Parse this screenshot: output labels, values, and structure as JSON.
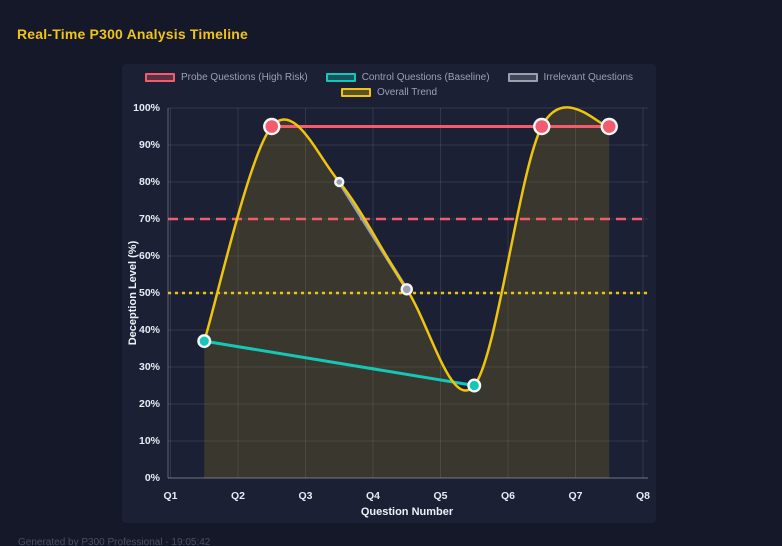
{
  "page": {
    "footer": "Generated by P300 Professional - 19:05:42"
  },
  "chart_data": {
    "type": "line",
    "title": "Real-Time P300 Analysis Timeline",
    "xlabel": "Question Number",
    "ylabel": "Deception Level (%)",
    "x_tick_labels": [
      "Q1",
      "Q2",
      "Q3",
      "Q4",
      "Q5",
      "Q6",
      "Q7",
      "Q8"
    ],
    "y_tick_labels": [
      "0%",
      "10%",
      "20%",
      "30%",
      "40%",
      "50%",
      "60%",
      "70%",
      "80%",
      "90%",
      "100%"
    ],
    "xlim": [
      1,
      8
    ],
    "ylim": [
      0,
      100
    ],
    "grid": true,
    "legend_position": "top",
    "background_color": "#141828",
    "panel_color": "#1b2034",
    "title_color": "#f1c319",
    "series": [
      {
        "key": "probe",
        "name": "Probe Questions (High Risk)",
        "color": "#f25c6e",
        "swatch_fill": "rgba(242,92,110,0.3)",
        "points": [
          [
            2.5,
            95
          ],
          [
            6.5,
            95
          ],
          [
            7.5,
            95
          ]
        ],
        "point_radius": 7.5,
        "line_width": 3,
        "smooth": false
      },
      {
        "key": "control",
        "name": "Control Questions (Baseline)",
        "color": "#15c7b6",
        "swatch_fill": "rgba(21,199,182,0.3)",
        "points": [
          [
            1.5,
            37
          ],
          [
            5.5,
            25
          ]
        ],
        "point_radius": 5.8,
        "line_width": 3,
        "smooth": false
      },
      {
        "key": "irrelevant",
        "name": "Irrelevant Questions",
        "color": "#9aa0ad",
        "swatch_fill": "rgba(154,160,173,0.3)",
        "points": [
          [
            3.5,
            80
          ],
          [
            4.5,
            51
          ]
        ],
        "point_radius": [
          4,
          5
        ],
        "line_width": 3.5,
        "smooth": false
      },
      {
        "key": "trend",
        "name": "Overall Trend",
        "color": "#eec40e",
        "swatch_fill": "rgba(238,196,14,0.3)",
        "points": [
          [
            1.5,
            37
          ],
          [
            2.5,
            95
          ],
          [
            3.5,
            80
          ],
          [
            4.5,
            51
          ],
          [
            5.5,
            25
          ],
          [
            6.5,
            95
          ],
          [
            7.5,
            95
          ]
        ],
        "point_radius": 0,
        "line_width": 2.5,
        "smooth": true,
        "fill": "rgba(238,196,14,0.14)"
      }
    ],
    "legend_rows": [
      [
        0,
        1,
        2
      ],
      [
        3
      ]
    ],
    "reference_lines": [
      {
        "y": 70,
        "color": "#f25c6e",
        "style": "dashed"
      },
      {
        "y": 50,
        "color": "#eec40e",
        "style": "dotted"
      }
    ]
  }
}
